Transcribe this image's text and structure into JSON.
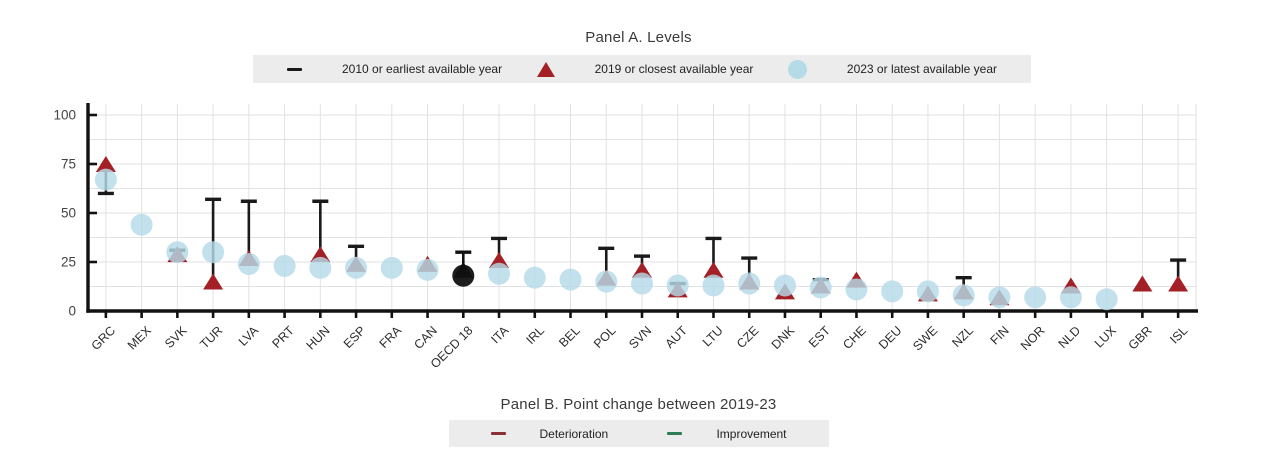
{
  "panel_a": {
    "title": "Panel A. Levels",
    "legend": [
      {
        "label": "2010 or earliest available year",
        "marker": "dash",
        "color": "#1a1a1a"
      },
      {
        "label": "2019 or closest available year",
        "marker": "triangle",
        "color": "#a32126"
      },
      {
        "label": "2023 or latest available year",
        "marker": "circle",
        "color": "#b5dbe8"
      }
    ]
  },
  "panel_b": {
    "title": "Panel B. Point change between 2019-23",
    "legend": [
      {
        "label": "Deterioration",
        "marker": "dash",
        "color": "#8a3036"
      },
      {
        "label": "Improvement",
        "marker": "dash",
        "color": "#2f7d56"
      }
    ]
  },
  "chart_data": {
    "type": "scatter",
    "title": "Panel A. Levels",
    "ylim": [
      0,
      100
    ],
    "yticks": [
      0,
      25,
      50,
      75,
      100
    ],
    "minor_grid_step": 12.5,
    "grid": true,
    "legend_position": "top",
    "highlight_category": "OECD 18",
    "highlight_color": "#111111",
    "categories": [
      "GRC",
      "MEX",
      "SVK",
      "TUR",
      "LVA",
      "PRT",
      "HUN",
      "ESP",
      "FRA",
      "CAN",
      "OECD 18",
      "ITA",
      "IRL",
      "BEL",
      "POL",
      "SVN",
      "AUT",
      "LTU",
      "CZE",
      "DNK",
      "EST",
      "CHE",
      "DEU",
      "SWE",
      "NZL",
      "FIN",
      "NOR",
      "NLD",
      "LUX",
      "GBR",
      "ISL"
    ],
    "series": [
      {
        "name": "2010 or earliest available year",
        "marker": "dash",
        "color": "#1a1a1a",
        "values": [
          60,
          null,
          31,
          57,
          56,
          null,
          56,
          33,
          null,
          null,
          30,
          37,
          null,
          null,
          32,
          28,
          14,
          37,
          27,
          null,
          16,
          null,
          null,
          null,
          17,
          null,
          null,
          null,
          null,
          null,
          26
        ]
      },
      {
        "name": "2019 or closest available year",
        "marker": "triangle",
        "color": "#a32126",
        "values": [
          74,
          null,
          28,
          14,
          26,
          null,
          28,
          23,
          null,
          23,
          20,
          25,
          null,
          null,
          16,
          20,
          10,
          20,
          14,
          9,
          12,
          15,
          null,
          8,
          9,
          6,
          null,
          12,
          null,
          13,
          13
        ]
      },
      {
        "name": "2023 or latest available year",
        "marker": "circle",
        "color": "#b5dbe8",
        "values": [
          67,
          44,
          30,
          30,
          24,
          23,
          22,
          22,
          22,
          21,
          18,
          19,
          17,
          16,
          15,
          14,
          13,
          13,
          14,
          13,
          12,
          11,
          10,
          10,
          8,
          7,
          7,
          7,
          6,
          null,
          null
        ]
      }
    ]
  }
}
